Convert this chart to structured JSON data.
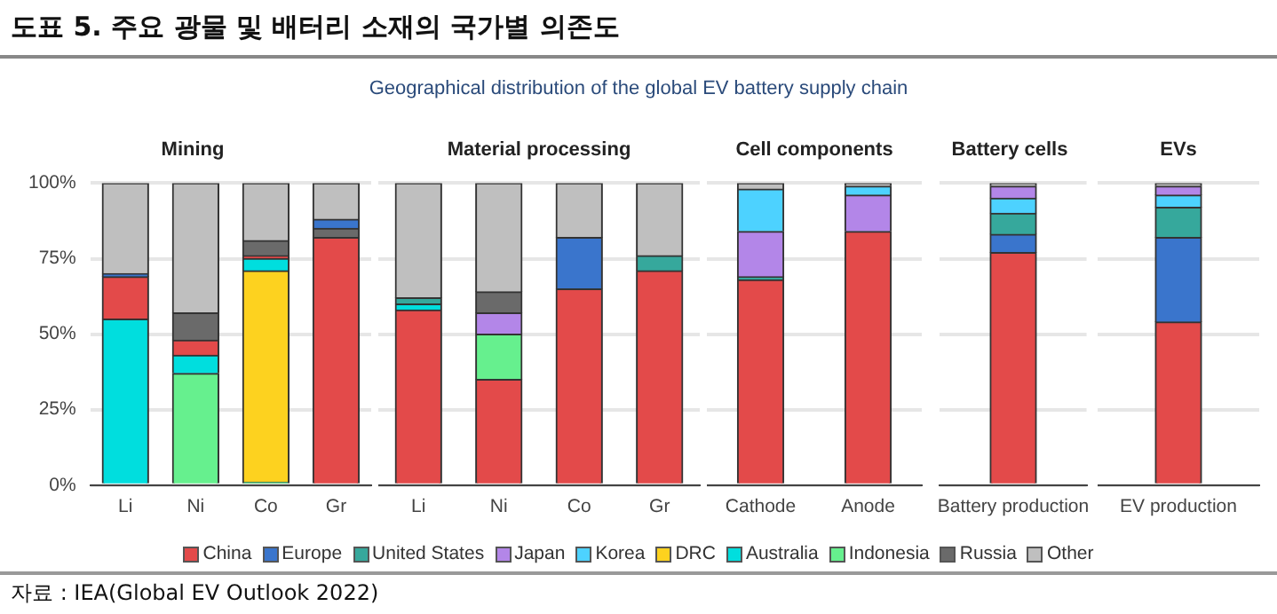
{
  "chart_data": [
    {
      "type": "bar",
      "stacked": true,
      "title": "Mining",
      "categories": [
        "Li",
        "Ni",
        "Co",
        "Gr"
      ],
      "ylim": [
        0,
        100
      ],
      "yticks": [
        {
          "value": 0,
          "label": "0%"
        },
        {
          "value": 25,
          "label": "25%"
        },
        {
          "value": 50,
          "label": "50%"
        },
        {
          "value": 75,
          "label": "75%"
        },
        {
          "value": 100,
          "label": "100%"
        }
      ],
      "grid": "y",
      "legend": "bottom",
      "annotations": [
        "도표 5. 주요 광물 및 배터리 소재의 국가별 의존도",
        "Geographical distribution of the global EV battery supply chain",
        "자료 : IEA(Global EV Outlook 2022)"
      ],
      "series": [
        {
          "name": "Indonesia",
          "color": "#66f08e",
          "values": [
            null,
            37,
            1,
            null
          ]
        },
        {
          "name": "DRC",
          "color": "#fdd21f",
          "values": [
            null,
            null,
            70,
            null
          ]
        },
        {
          "name": "Australia",
          "color": "#00dede",
          "values": [
            55,
            6,
            4,
            null
          ]
        },
        {
          "name": "China",
          "color": "#e34a4a",
          "values": [
            14,
            5,
            1,
            82
          ]
        },
        {
          "name": "Russia",
          "color": "#6a6a6a",
          "values": [
            null,
            9,
            5,
            3
          ]
        },
        {
          "name": "Europe",
          "color": "#3a75cc",
          "values": [
            1,
            null,
            null,
            3
          ]
        },
        {
          "name": "Other",
          "color": "#bfbfbf",
          "values": [
            30,
            43,
            19,
            12
          ]
        }
      ]
    },
    {
      "type": "bar",
      "stacked": true,
      "title": "Material processing",
      "categories": [
        "Li",
        "Ni",
        "Co",
        "Gr"
      ],
      "ylim": [
        0,
        100
      ],
      "yticks": [
        {
          "value": 0,
          "label": null
        },
        {
          "value": 25,
          "label": null
        },
        {
          "value": 50,
          "label": null
        },
        {
          "value": 75,
          "label": null
        },
        {
          "value": 100,
          "label": null
        }
      ],
      "grid": "y",
      "tick_labels": "x",
      "legend": "bottom",
      "series": [
        {
          "name": "China",
          "color": "#e34a4a",
          "values": [
            58,
            35,
            65,
            71
          ]
        },
        {
          "name": "Indonesia",
          "color": "#66f08e",
          "values": [
            null,
            15,
            null,
            null
          ]
        },
        {
          "name": "Australia",
          "color": "#00dede",
          "values": [
            2,
            null,
            null,
            null
          ]
        },
        {
          "name": "United States",
          "color": "#36a89c",
          "values": [
            2,
            null,
            null,
            5
          ]
        },
        {
          "name": "Japan",
          "color": "#b386e8",
          "values": [
            null,
            7,
            null,
            null
          ]
        },
        {
          "name": "Russia",
          "color": "#6a6a6a",
          "values": [
            null,
            7,
            null,
            null
          ]
        },
        {
          "name": "Europe",
          "color": "#3a75cc",
          "values": [
            null,
            null,
            17,
            null
          ]
        },
        {
          "name": "Other",
          "color": "#bfbfbf",
          "values": [
            38,
            36,
            18,
            24
          ]
        }
      ]
    },
    {
      "type": "bar",
      "stacked": true,
      "title": "Cell components",
      "categories": [
        "Cathode",
        "Anode"
      ],
      "ylim": [
        0,
        100
      ],
      "yticks": [
        {
          "value": 0,
          "label": null
        },
        {
          "value": 25,
          "label": null
        },
        {
          "value": 50,
          "label": null
        },
        {
          "value": 75,
          "label": null
        },
        {
          "value": 100,
          "label": null
        }
      ],
      "grid": "y",
      "tick_labels": "x",
      "legend": "bottom",
      "series": [
        {
          "name": "China",
          "color": "#e34a4a",
          "values": [
            68,
            84
          ]
        },
        {
          "name": "Europe",
          "color": "#3a75cc",
          "values": [
            null,
            null
          ]
        },
        {
          "name": "United States",
          "color": "#36a89c",
          "values": [
            1,
            null
          ]
        },
        {
          "name": "Japan",
          "color": "#b386e8",
          "values": [
            15,
            12
          ]
        },
        {
          "name": "Korea",
          "color": "#4dd2ff",
          "values": [
            14,
            3
          ]
        },
        {
          "name": "DRC",
          "color": "#fdd21f",
          "values": [
            null,
            null
          ]
        },
        {
          "name": "Australia",
          "color": "#00dede",
          "values": [
            null,
            null
          ]
        },
        {
          "name": "Indonesia",
          "color": "#66f08e",
          "values": [
            null,
            null
          ]
        },
        {
          "name": "Russia",
          "color": "#6a6a6a",
          "values": [
            null,
            null
          ]
        },
        {
          "name": "Other",
          "color": "#bfbfbf",
          "values": [
            2,
            1
          ]
        }
      ]
    },
    {
      "type": "bar",
      "stacked": true,
      "title": "Battery cells",
      "categories": [
        "Battery production"
      ],
      "ylim": [
        0,
        100
      ],
      "yticks": [
        {
          "value": 0,
          "label": null
        },
        {
          "value": 25,
          "label": null
        },
        {
          "value": 50,
          "label": null
        },
        {
          "value": 75,
          "label": null
        },
        {
          "value": 100,
          "label": null
        }
      ],
      "grid": "y",
      "tick_labels": "x",
      "legend": "bottom",
      "series": [
        {
          "name": "China",
          "color": "#e34a4a",
          "values": [
            77
          ]
        },
        {
          "name": "Europe",
          "color": "#3a75cc",
          "values": [
            6
          ]
        },
        {
          "name": "United States",
          "color": "#36a89c",
          "values": [
            7
          ]
        },
        {
          "name": "Korea",
          "color": "#4dd2ff",
          "values": [
            5
          ]
        },
        {
          "name": "Japan",
          "color": "#b386e8",
          "values": [
            4
          ]
        },
        {
          "name": "Other",
          "color": "#bfbfbf",
          "values": [
            1
          ]
        }
      ]
    },
    {
      "type": "bar",
      "stacked": true,
      "title": "EVs",
      "categories": [
        "EV production"
      ],
      "ylim": [
        0,
        100
      ],
      "yticks": [
        {
          "value": 0,
          "label": null
        },
        {
          "value": 25,
          "label": null
        },
        {
          "value": 50,
          "label": null
        },
        {
          "value": 75,
          "label": null
        },
        {
          "value": 100,
          "label": null
        }
      ],
      "grid": "y",
      "tick_labels": "x",
      "legend": "bottom",
      "series": [
        {
          "name": "China",
          "color": "#e34a4a",
          "values": [
            54
          ]
        },
        {
          "name": "Europe",
          "color": "#3a75cc",
          "values": [
            28
          ]
        },
        {
          "name": "United States",
          "color": "#36a89c",
          "values": [
            10
          ]
        },
        {
          "name": "Korea",
          "color": "#4dd2ff",
          "values": [
            4
          ]
        },
        {
          "name": "Japan",
          "color": "#b386e8",
          "values": [
            3
          ]
        },
        {
          "name": "Other",
          "color": "#bfbfbf",
          "values": [
            1
          ]
        }
      ]
    }
  ]
}
